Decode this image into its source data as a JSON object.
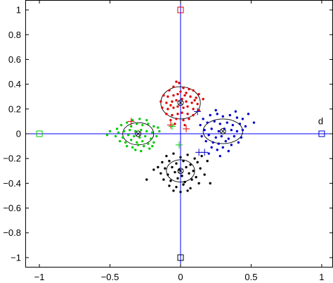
{
  "chart_data": {
    "type": "scatter",
    "title": "",
    "xlabel": "",
    "ylabel": "",
    "xlim": [
      -1.1,
      1.08
    ],
    "ylim": [
      -1.08,
      1.08
    ],
    "xticks": [
      -1,
      -0.5,
      0,
      0.5,
      1
    ],
    "xtick_labels": [
      "−1",
      "−0.5",
      "0",
      "0.5",
      "1"
    ],
    "yticks": [
      1,
      0.8,
      0.6,
      0.4,
      0.2,
      0,
      -0.2,
      -0.4,
      -0.6,
      -0.8,
      -1
    ],
    "ytick_labels": [
      "1",
      "0.8",
      "0.6",
      "0.4",
      "0.2",
      "0",
      "−0.2",
      "−0.4",
      "−0.6",
      "−0.8",
      "−1"
    ],
    "grid": false,
    "reference_lines": {
      "x": 0,
      "y": 0,
      "color": "#0000ff"
    },
    "annotation": {
      "text": "d",
      "x": 0.99,
      "y": 0.1
    },
    "series": [
      {
        "color": "#e00000",
        "center": [
          0.0,
          0.25
        ],
        "ellipse_radii": [
          0.14,
          0.13
        ],
        "anchor_square": [
          0,
          1
        ],
        "plus_markers": [
          [
            -0.35,
            0.1
          ],
          [
            0.04,
            0.04
          ],
          [
            -0.07,
            0.07
          ]
        ],
        "points": [
          [
            -0.08,
            0.35
          ],
          [
            -0.05,
            0.38
          ],
          [
            -0.03,
            0.42
          ],
          [
            -0.01,
            0.41
          ],
          [
            0.02,
            0.37
          ],
          [
            0.06,
            0.36
          ],
          [
            0.09,
            0.35
          ],
          [
            0.13,
            0.32
          ],
          [
            -0.12,
            0.31
          ],
          [
            -0.09,
            0.3
          ],
          [
            -0.05,
            0.31
          ],
          [
            -0.02,
            0.32
          ],
          [
            0.03,
            0.31
          ],
          [
            0.07,
            0.3
          ],
          [
            0.11,
            0.29
          ],
          [
            0.16,
            0.28
          ],
          [
            -0.14,
            0.26
          ],
          [
            -0.1,
            0.25
          ],
          [
            -0.06,
            0.26
          ],
          [
            -0.03,
            0.27
          ],
          [
            0.01,
            0.28
          ],
          [
            0.04,
            0.26
          ],
          [
            0.08,
            0.25
          ],
          [
            0.12,
            0.24
          ],
          [
            -0.13,
            0.21
          ],
          [
            -0.09,
            0.2
          ],
          [
            -0.05,
            0.21
          ],
          [
            -0.02,
            0.22
          ],
          [
            0.02,
            0.21
          ],
          [
            0.05,
            0.22
          ],
          [
            0.09,
            0.2
          ],
          [
            0.13,
            0.19
          ],
          [
            -0.1,
            0.16
          ],
          [
            -0.06,
            0.15
          ],
          [
            -0.02,
            0.16
          ],
          [
            0.01,
            0.17
          ],
          [
            0.05,
            0.16
          ],
          [
            0.09,
            0.15
          ],
          [
            -0.07,
            0.11
          ],
          [
            -0.03,
            0.12
          ],
          [
            0.02,
            0.11
          ],
          [
            0.06,
            0.12
          ],
          [
            0.03,
            0.07
          ],
          [
            -0.04,
            0.08
          ],
          [
            0.0,
            0.34
          ],
          [
            -0.07,
            0.23
          ],
          [
            0.1,
            0.27
          ],
          [
            0.04,
            0.33
          ]
        ]
      },
      {
        "color": "#00cc00",
        "center": [
          -0.3,
          0.0
        ],
        "ellipse_radii": [
          0.11,
          0.09
        ],
        "anchor_square": [
          -1,
          0
        ],
        "plus_markers": [
          [
            -0.06,
            0.06
          ],
          [
            -0.01,
            -0.09
          ]
        ],
        "points": [
          [
            -0.45,
            0.04
          ],
          [
            -0.42,
            0.07
          ],
          [
            -0.38,
            0.09
          ],
          [
            -0.35,
            0.06
          ],
          [
            -0.31,
            0.08
          ],
          [
            -0.27,
            0.07
          ],
          [
            -0.23,
            0.08
          ],
          [
            -0.19,
            0.06
          ],
          [
            -0.16,
            0.05
          ],
          [
            -0.5,
            0.02
          ],
          [
            -0.44,
            0.01
          ],
          [
            -0.4,
            0.02
          ],
          [
            -0.36,
            0.03
          ],
          [
            -0.32,
            0.02
          ],
          [
            -0.28,
            0.03
          ],
          [
            -0.24,
            0.02
          ],
          [
            -0.2,
            0.01
          ],
          [
            -0.15,
            0.02
          ],
          [
            -0.46,
            -0.02
          ],
          [
            -0.41,
            -0.03
          ],
          [
            -0.37,
            -0.01
          ],
          [
            -0.33,
            -0.02
          ],
          [
            -0.29,
            -0.03
          ],
          [
            -0.25,
            -0.02
          ],
          [
            -0.21,
            -0.04
          ],
          [
            -0.17,
            -0.02
          ],
          [
            -0.43,
            -0.06
          ],
          [
            -0.39,
            -0.07
          ],
          [
            -0.35,
            -0.05
          ],
          [
            -0.31,
            -0.07
          ],
          [
            -0.27,
            -0.06
          ],
          [
            -0.23,
            -0.08
          ],
          [
            -0.19,
            -0.07
          ],
          [
            -0.38,
            -0.1
          ],
          [
            -0.34,
            -0.11
          ],
          [
            -0.3,
            -0.09
          ],
          [
            -0.26,
            -0.1
          ],
          [
            -0.22,
            -0.12
          ],
          [
            -0.32,
            -0.13
          ],
          [
            -0.28,
            -0.14
          ],
          [
            -0.34,
            0.11
          ],
          [
            -0.29,
            0.12
          ],
          [
            -0.24,
            0.11
          ],
          [
            -0.52,
            -0.01
          ],
          [
            -0.2,
            -0.1
          ]
        ]
      },
      {
        "color": "#0000cc",
        "center": [
          0.3,
          0.02
        ],
        "ellipse_radii": [
          0.14,
          0.1
        ],
        "anchor_square": [
          1,
          0
        ],
        "plus_markers": [
          [
            0.12,
            0.18
          ],
          [
            0.13,
            -0.15
          ],
          [
            0.17,
            -0.15
          ]
        ],
        "points": [
          [
            0.16,
            0.12
          ],
          [
            0.21,
            0.15
          ],
          [
            0.26,
            0.16
          ],
          [
            0.3,
            0.14
          ],
          [
            0.35,
            0.15
          ],
          [
            0.4,
            0.13
          ],
          [
            0.44,
            0.12
          ],
          [
            0.48,
            0.16
          ],
          [
            0.14,
            0.07
          ],
          [
            0.19,
            0.09
          ],
          [
            0.24,
            0.1
          ],
          [
            0.28,
            0.08
          ],
          [
            0.33,
            0.09
          ],
          [
            0.37,
            0.07
          ],
          [
            0.42,
            0.08
          ],
          [
            0.46,
            0.06
          ],
          [
            0.17,
            0.03
          ],
          [
            0.22,
            0.04
          ],
          [
            0.27,
            0.02
          ],
          [
            0.31,
            0.04
          ],
          [
            0.36,
            0.03
          ],
          [
            0.4,
            0.02
          ],
          [
            0.44,
            0.03
          ],
          [
            0.15,
            -0.02
          ],
          [
            0.2,
            -0.01
          ],
          [
            0.25,
            -0.03
          ],
          [
            0.29,
            -0.02
          ],
          [
            0.34,
            -0.04
          ],
          [
            0.38,
            -0.02
          ],
          [
            0.43,
            -0.03
          ],
          [
            0.18,
            -0.06
          ],
          [
            0.23,
            -0.07
          ],
          [
            0.27,
            -0.08
          ],
          [
            0.32,
            -0.06
          ],
          [
            0.36,
            -0.09
          ],
          [
            0.41,
            -0.07
          ],
          [
            0.22,
            -0.11
          ],
          [
            0.26,
            -0.13
          ],
          [
            0.3,
            -0.11
          ],
          [
            0.34,
            -0.14
          ],
          [
            0.28,
            -0.18
          ],
          [
            0.2,
            -0.16
          ],
          [
            0.25,
            0.19
          ],
          [
            0.39,
            0.18
          ],
          [
            0.52,
            0.09
          ]
        ]
      },
      {
        "color": "#000000",
        "center": [
          0.0,
          -0.3
        ],
        "ellipse_radii": [
          0.1,
          0.09
        ],
        "anchor_square": [
          0,
          -1
        ],
        "plus_markers": [],
        "points": [
          [
            -0.1,
            -0.18
          ],
          [
            -0.05,
            -0.16
          ],
          [
            0.0,
            -0.19
          ],
          [
            0.05,
            -0.17
          ],
          [
            0.1,
            -0.2
          ],
          [
            0.15,
            -0.18
          ],
          [
            -0.13,
            -0.23
          ],
          [
            -0.08,
            -0.22
          ],
          [
            -0.03,
            -0.24
          ],
          [
            0.02,
            -0.22
          ],
          [
            0.07,
            -0.25
          ],
          [
            0.12,
            -0.23
          ],
          [
            -0.16,
            -0.27
          ],
          [
            -0.11,
            -0.28
          ],
          [
            -0.06,
            -0.27
          ],
          [
            -0.01,
            -0.29
          ],
          [
            0.04,
            -0.27
          ],
          [
            0.09,
            -0.3
          ],
          [
            0.14,
            -0.28
          ],
          [
            -0.14,
            -0.32
          ],
          [
            -0.09,
            -0.33
          ],
          [
            -0.04,
            -0.31
          ],
          [
            0.01,
            -0.34
          ],
          [
            0.06,
            -0.32
          ],
          [
            0.11,
            -0.35
          ],
          [
            -0.12,
            -0.37
          ],
          [
            -0.07,
            -0.38
          ],
          [
            -0.02,
            -0.36
          ],
          [
            0.03,
            -0.39
          ],
          [
            0.08,
            -0.37
          ],
          [
            0.13,
            -0.4
          ],
          [
            -0.08,
            -0.42
          ],
          [
            -0.03,
            -0.43
          ],
          [
            0.02,
            -0.41
          ],
          [
            0.07,
            -0.44
          ],
          [
            -0.05,
            -0.46
          ],
          [
            0.0,
            -0.47
          ],
          [
            0.05,
            -0.46
          ],
          [
            -0.24,
            -0.37
          ],
          [
            0.19,
            -0.22
          ],
          [
            0.17,
            -0.33
          ],
          [
            -0.19,
            -0.29
          ],
          [
            0.21,
            -0.4
          ]
        ]
      }
    ]
  }
}
